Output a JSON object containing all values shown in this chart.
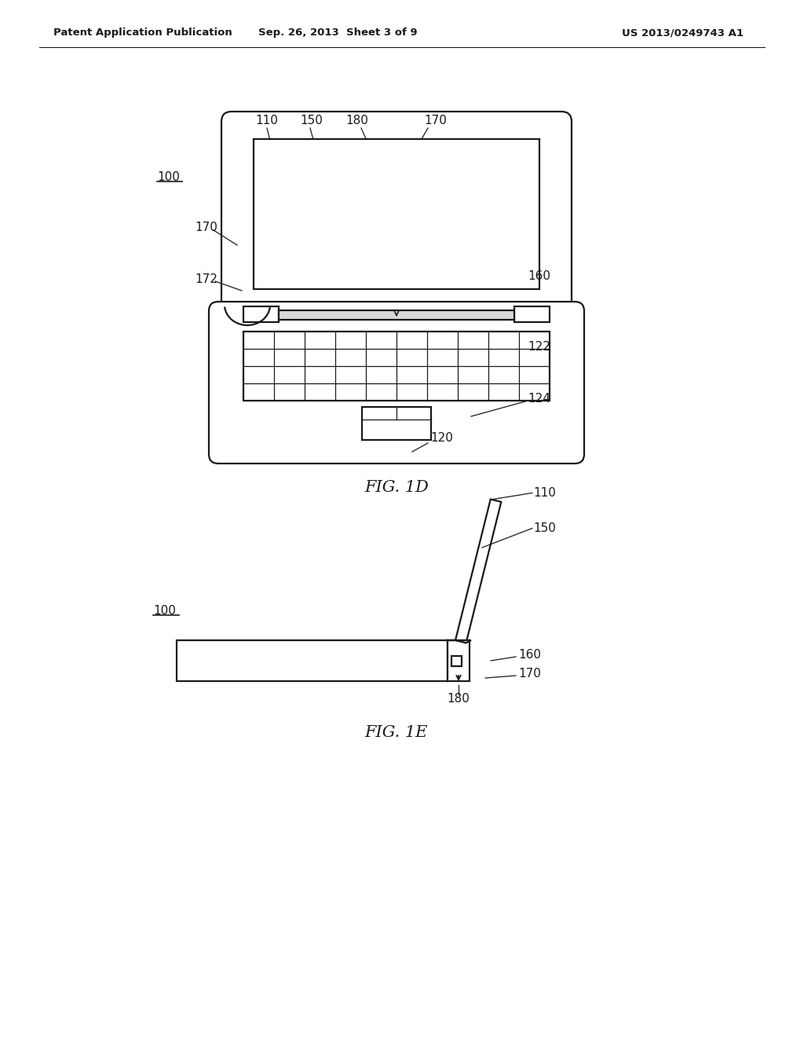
{
  "bg_color": "#ffffff",
  "line_color": "#1a1a1a",
  "header_left": "Patent Application Publication",
  "header_mid": "Sep. 26, 2013  Sheet 3 of 9",
  "header_right": "US 2013/0249743 A1",
  "fig1d_label": "FIG. 1D",
  "fig1e_label": "FIG. 1E"
}
